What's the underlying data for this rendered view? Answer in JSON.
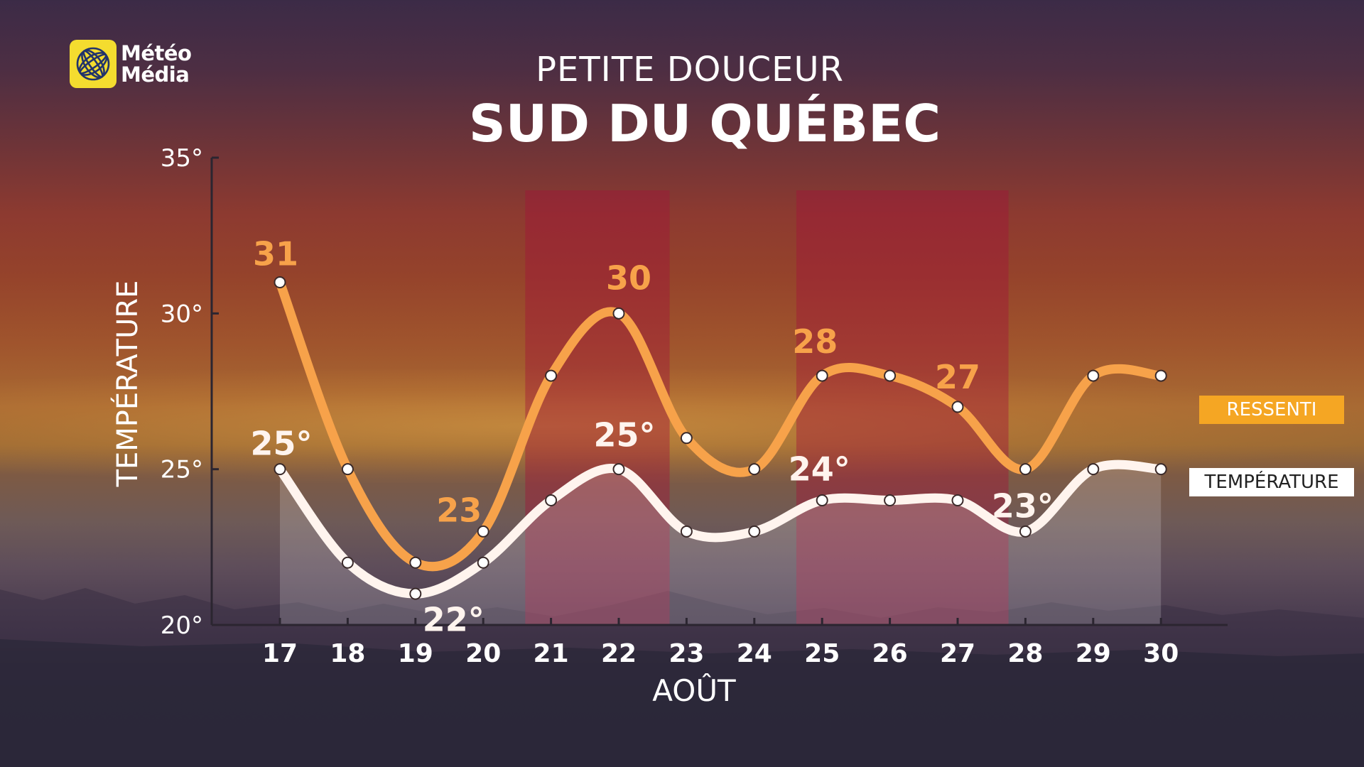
{
  "brand": {
    "line1": "Météo",
    "line2": "Média"
  },
  "header": {
    "subtitle": "PETITE DOUCEUR",
    "title": "SUD DU QUÉBEC"
  },
  "legend": {
    "ressenti": "RESSENTI",
    "temperature": "TEMPÉRATURE"
  },
  "colors": {
    "ressenti": "#f7a24a",
    "temperature": "#fff4ee",
    "highlight": "#a3123a",
    "brand_yellow": "#f4dc2f"
  },
  "chart_data": {
    "type": "line",
    "ylabel": "TEMPÉRATURE",
    "xlabel": "AOÛT",
    "ylim": [
      20,
      35
    ],
    "y_ticks": [
      "20°",
      "25°",
      "30°",
      "35°"
    ],
    "y_tick_values": [
      20,
      25,
      30,
      35
    ],
    "categories": [
      "17",
      "18",
      "19",
      "20",
      "21",
      "22",
      "23",
      "24",
      "25",
      "26",
      "27",
      "28",
      "29",
      "30"
    ],
    "highlight_ranges": [
      [
        "21",
        "22"
      ],
      [
        "25",
        "27"
      ]
    ],
    "series": [
      {
        "name": "RESSENTI",
        "values": [
          31,
          25,
          22,
          23,
          28,
          30,
          26,
          25,
          28,
          28,
          27,
          25,
          28,
          28
        ],
        "labels": [
          {
            "index": 0,
            "text": "31"
          },
          {
            "index": 3,
            "text": "23"
          },
          {
            "index": 5,
            "text": "30"
          },
          {
            "index": 8,
            "text": "28"
          },
          {
            "index": 10,
            "text": "27"
          }
        ]
      },
      {
        "name": "TEMPÉRATURE",
        "values": [
          25,
          22,
          21,
          22,
          24,
          25,
          23,
          23,
          24,
          24,
          24,
          23,
          25,
          25
        ],
        "labels": [
          {
            "index": 0,
            "text": "25°"
          },
          {
            "index": 3,
            "text": "22°"
          },
          {
            "index": 5,
            "text": "25°"
          },
          {
            "index": 8,
            "text": "24°"
          },
          {
            "index": 11,
            "text": "23°"
          }
        ]
      }
    ]
  }
}
